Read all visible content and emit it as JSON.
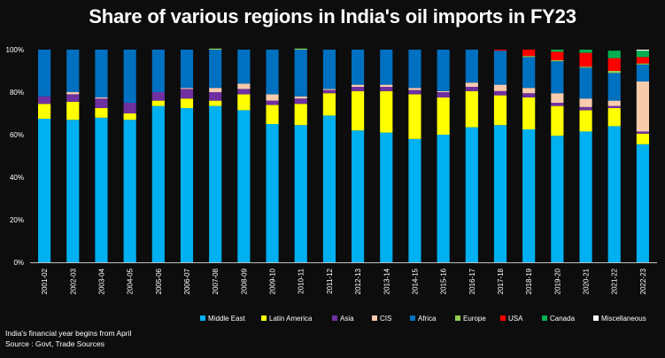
{
  "chart_data": {
    "type": "bar",
    "stacked": true,
    "title": "Share of various regions in India's oil imports in FY23",
    "xlabel": "",
    "ylabel": "",
    "ylim": [
      0,
      100
    ],
    "yticks": [
      "0%",
      "20%",
      "40%",
      "60%",
      "80%",
      "100%"
    ],
    "grid": false,
    "legend_position": "bottom",
    "categories": [
      "2001-02",
      "2002-03",
      "2003-04",
      "2004-05",
      "2005-06",
      "2006-07",
      "2007-08",
      "2008-09",
      "2009-10",
      "2010-11",
      "2011-12",
      "2012-13",
      "2013-14",
      "2014-15",
      "2015-16",
      "2016-17",
      "2017-18",
      "2018-19",
      "2019-20",
      "2020-21",
      "2021-22",
      "2022-23"
    ],
    "series": [
      {
        "name": "Middle East",
        "color": "#00b0f0",
        "values": [
          67.5,
          67,
          68,
          67,
          73.5,
          72.5,
          73.5,
          71.5,
          65,
          64.5,
          69,
          62,
          61,
          58,
          60,
          63.5,
          64.5,
          62.5,
          59.5,
          61.5,
          64,
          55.5
        ]
      },
      {
        "name": "Latin America",
        "color": "#ffff00",
        "values": [
          7,
          8.5,
          4.5,
          3,
          2.5,
          4.5,
          2.5,
          7.5,
          9,
          10,
          10.5,
          18.5,
          19.5,
          21,
          17.5,
          17,
          14,
          15,
          14,
          10,
          8.5,
          5
        ]
      },
      {
        "name": "Asia",
        "color": "#7030a0",
        "values": [
          3.5,
          3.5,
          4.5,
          5,
          4,
          4.5,
          4,
          2.5,
          2,
          2.5,
          1.5,
          2,
          2,
          2,
          2.5,
          2,
          2,
          2,
          1.5,
          1.5,
          1,
          1
        ]
      },
      {
        "name": "CIS",
        "color": "#f8cbad",
        "values": [
          0,
          1,
          0.5,
          0,
          0,
          0.5,
          2,
          2.5,
          3,
          1,
          0.5,
          1,
          1,
          1,
          0.5,
          2,
          3,
          2.5,
          4.5,
          4,
          2.5,
          23.5
        ]
      },
      {
        "name": "Africa",
        "color": "#0070c0",
        "values": [
          22,
          20,
          22.5,
          25,
          20,
          18,
          18,
          16,
          21,
          22,
          18.5,
          16.5,
          16.5,
          18,
          19.5,
          15.5,
          16,
          14.5,
          15,
          14.5,
          13,
          8
        ]
      },
      {
        "name": "Europe",
        "color": "#92d050",
        "values": [
          0,
          0,
          0,
          0,
          0,
          0,
          0.5,
          0,
          0,
          0.5,
          0,
          0,
          0,
          0,
          0,
          0,
          0,
          0.5,
          0.5,
          0.5,
          1,
          0.5
        ]
      },
      {
        "name": "USA",
        "color": "#ff0000",
        "values": [
          0,
          0,
          0,
          0,
          0,
          0,
          0,
          0,
          0,
          0,
          0,
          0,
          0,
          0,
          0,
          0,
          0.5,
          3,
          4,
          6.5,
          6,
          3
        ]
      },
      {
        "name": "Canada",
        "color": "#00b050",
        "values": [
          0,
          0,
          0,
          0,
          0,
          0,
          0,
          0,
          0,
          0,
          0,
          0,
          0,
          0,
          0,
          0,
          0,
          0,
          1,
          1.5,
          3.5,
          3
        ]
      },
      {
        "name": "Miscellaneous",
        "color": "#ffffff",
        "values": [
          0,
          0,
          0,
          0,
          0,
          0,
          0,
          0,
          0,
          0,
          0,
          0,
          0,
          0,
          0,
          0,
          0,
          0,
          0,
          0,
          0,
          0.5
        ]
      }
    ]
  },
  "footnotes": {
    "line1": "India's financial year begins from April",
    "line2": "Source : Govt, Trade Sources"
  }
}
